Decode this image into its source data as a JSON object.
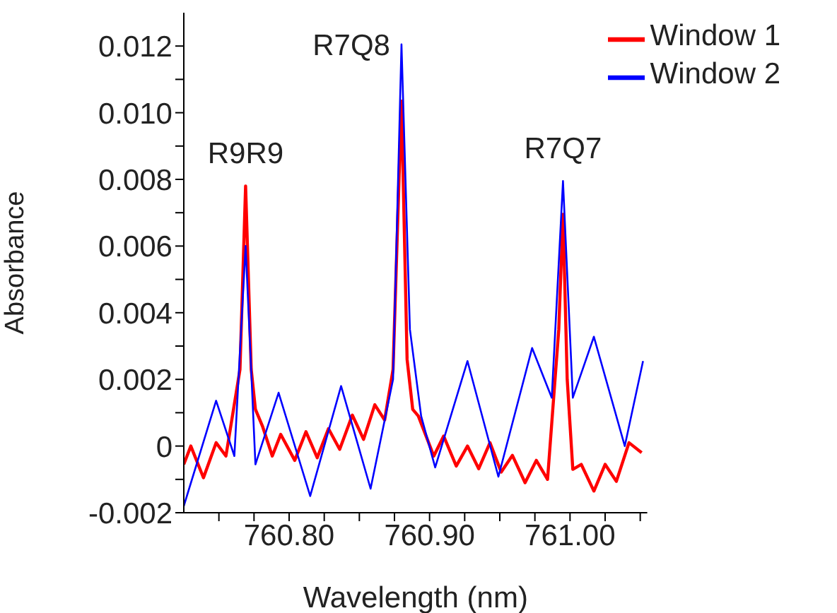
{
  "chart_data": {
    "type": "line",
    "xlabel": "Wavelength (nm)",
    "ylabel": "Absorbance",
    "legend": "top right",
    "grid": false,
    "xlim": [
      760.725,
      761.055
    ],
    "ylim": [
      -0.002,
      0.013
    ],
    "xticks": [
      {
        "value": 760.75,
        "label": null
      },
      {
        "value": 760.775,
        "label": null
      },
      {
        "value": 760.8,
        "label": "760.80"
      },
      {
        "value": 760.825,
        "label": null
      },
      {
        "value": 760.85,
        "label": null
      },
      {
        "value": 760.875,
        "label": null
      },
      {
        "value": 760.9,
        "label": "760.90"
      },
      {
        "value": 760.925,
        "label": null
      },
      {
        "value": 760.95,
        "label": null
      },
      {
        "value": 760.975,
        "label": null
      },
      {
        "value": 761,
        "label": "761.00"
      },
      {
        "value": 761.025,
        "label": null
      },
      {
        "value": 761.05,
        "label": null
      }
    ],
    "yticks": [
      -0.002,
      {
        "value": -0.001,
        "label": null
      },
      0,
      {
        "value": 0.001,
        "label": null
      },
      0.002,
      {
        "value": 0.003,
        "label": null
      },
      0.004,
      {
        "value": 0.005,
        "label": null
      },
      0.006,
      {
        "value": 0.007,
        "label": null
      },
      0.008,
      {
        "value": 0.009,
        "label": null
      },
      {
        "value": 0.01,
        "label": "0.010"
      },
      {
        "value": 0.011,
        "label": null
      },
      0.012
    ],
    "annotations": [
      {
        "text": "R9R9",
        "x": 760.769,
        "y": 0.0078
      },
      {
        "text": "R7Q8",
        "x": 760.88,
        "y": 0.01205
      },
      {
        "text": "R7Q7",
        "x": 760.995,
        "y": 0.00795
      }
    ],
    "series": [
      {
        "name": "Window 1",
        "color": "#ff0000",
        "x": [
          760.725,
          760.73,
          760.739,
          760.748,
          760.755,
          760.765,
          760.769,
          760.773,
          760.776,
          760.781,
          760.788,
          760.794,
          760.804,
          760.812,
          760.82,
          760.828,
          760.836,
          760.845,
          760.853,
          760.861,
          760.868,
          760.874,
          760.88,
          760.884,
          760.888,
          760.892,
          760.903,
          760.91,
          760.919,
          760.927,
          760.935,
          760.943,
          760.951,
          760.959,
          760.968,
          760.976,
          760.984,
          760.992,
          760.995,
          760.998,
          761.002,
          761.008,
          761.017,
          761.025,
          761.033,
          761.042,
          761.051
        ],
        "values": [
          -0.00055,
          0,
          -0.00095,
          0.0001,
          -0.0003,
          0.0023,
          0.0078,
          0.0023,
          0.0011,
          0.0006,
          -0.0003,
          0.00035,
          -0.00043,
          0.00043,
          -0.00035,
          0.00052,
          -0.0001,
          0.00093,
          0.0002,
          0.00124,
          0.00078,
          0.0023,
          0.01035,
          0.0026,
          0.0011,
          0.0009,
          -0.0003,
          0.0003,
          -0.0006,
          0,
          -0.00068,
          0.0001,
          -0.00078,
          -0.00028,
          -0.0011,
          -0.00043,
          -0.001,
          0.0035,
          0.00695,
          0.002,
          -0.0007,
          -0.00055,
          -0.00135,
          -0.00055,
          -0.00106,
          0.0001,
          -0.0002
        ]
      },
      {
        "name": "Window 2",
        "color": "#0000ff",
        "x": [
          760.725,
          760.748,
          760.761,
          760.769,
          760.776,
          760.7925,
          760.815,
          760.837,
          760.858,
          760.874,
          760.88,
          760.886,
          760.894,
          760.904,
          760.927,
          760.949,
          760.973,
          760.987,
          760.995,
          761.002,
          761.017,
          761.039,
          761.052
        ],
        "values": [
          -0.0018,
          0.00136,
          -0.0003,
          0.006,
          -0.00055,
          0.0016,
          -0.0015,
          0.0018,
          -0.00128,
          0.002,
          0.01205,
          0.0035,
          0.0009,
          -0.00064,
          0.00255,
          -0.00092,
          0.00294,
          0.00145,
          0.00795,
          0.00145,
          0.00328,
          0,
          0.00255
        ]
      }
    ]
  }
}
